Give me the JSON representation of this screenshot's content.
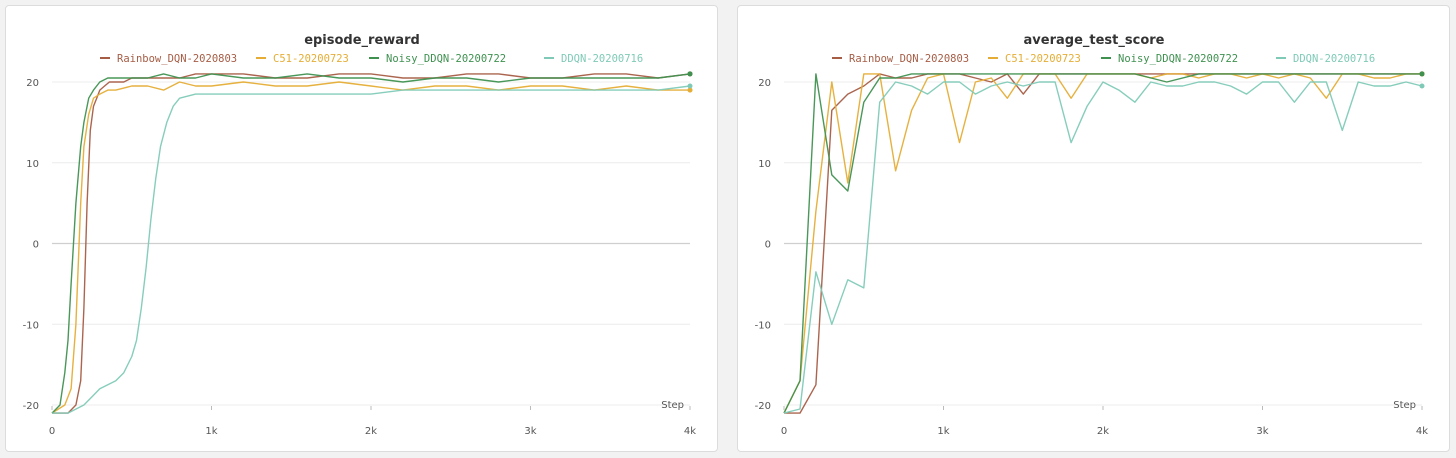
{
  "colors": {
    "rainbow": "#a65d45",
    "c51": "#e5ad35",
    "noisy": "#3f9150",
    "ddqn": "#7fcab7",
    "grid": "#ececec",
    "zero_line": "#cfcfcf"
  },
  "chart_data": [
    {
      "type": "line",
      "title": "episode_reward",
      "xlabel": "Step",
      "ylabel": "",
      "xlim": [
        0,
        4000
      ],
      "ylim": [
        -21,
        21
      ],
      "x_ticks": [
        0,
        1000,
        2000,
        3000,
        4000
      ],
      "x_tick_labels": [
        "0",
        "1k",
        "2k",
        "3k",
        "4k"
      ],
      "y_ticks": [
        20,
        10,
        0,
        -10,
        -20
      ],
      "y_tick_labels": [
        "20",
        "10",
        "0",
        "-10",
        "-20"
      ],
      "legend_position": "top",
      "series": [
        {
          "name": "Rainbow_DQN-2020803",
          "color_key": "rainbow",
          "x": [
            0,
            100,
            150,
            180,
            200,
            220,
            240,
            260,
            280,
            300,
            330,
            360,
            400,
            450,
            500,
            600,
            700,
            800,
            900,
            1000,
            1200,
            1400,
            1600,
            1800,
            2000,
            2200,
            2400,
            2600,
            2800,
            3000,
            3200,
            3400,
            3600,
            3800,
            4000
          ],
          "y": [
            -21,
            -21,
            -20,
            -17,
            -8,
            5,
            14,
            17,
            18,
            19,
            19.5,
            20,
            20,
            20,
            20.5,
            20.5,
            20.5,
            20.5,
            21,
            21,
            21,
            20.5,
            20.5,
            21,
            21,
            20.5,
            20.5,
            21,
            21,
            20.5,
            20.5,
            21,
            21,
            20.5,
            21
          ]
        },
        {
          "name": "C51-20200723",
          "color_key": "c51",
          "x": [
            0,
            80,
            120,
            150,
            180,
            200,
            230,
            260,
            300,
            350,
            400,
            500,
            600,
            700,
            800,
            900,
            1000,
            1200,
            1400,
            1600,
            1800,
            2000,
            2200,
            2400,
            2600,
            2800,
            3000,
            3200,
            3400,
            3600,
            3800,
            4000
          ],
          "y": [
            -21,
            -20,
            -18,
            -10,
            5,
            12,
            16,
            18,
            18.5,
            19,
            19,
            19.5,
            19.5,
            19,
            20,
            19.5,
            19.5,
            20,
            19.5,
            19.5,
            20,
            19.5,
            19,
            19.5,
            19.5,
            19,
            19.5,
            19.5,
            19,
            19.5,
            19,
            19
          ]
        },
        {
          "name": "Noisy_DDQN-20200722",
          "color_key": "noisy",
          "x": [
            0,
            50,
            80,
            100,
            120,
            150,
            180,
            200,
            230,
            260,
            300,
            350,
            400,
            500,
            600,
            700,
            800,
            900,
            1000,
            1200,
            1400,
            1600,
            1800,
            2000,
            2200,
            2400,
            2600,
            2800,
            3000,
            3200,
            3400,
            3600,
            3800,
            4000
          ],
          "y": [
            -21,
            -20,
            -16,
            -12,
            -5,
            5,
            12,
            15,
            18,
            19,
            20,
            20.5,
            20.5,
            20.5,
            20.5,
            21,
            20.5,
            20.5,
            21,
            20.5,
            20.5,
            21,
            20.5,
            20.5,
            20,
            20.5,
            20.5,
            20,
            20.5,
            20.5,
            20.5,
            20.5,
            20.5,
            21
          ]
        },
        {
          "name": "DDQN-20200716",
          "color_key": "ddqn",
          "x": [
            0,
            100,
            200,
            250,
            300,
            350,
            400,
            450,
            500,
            530,
            560,
            590,
            620,
            650,
            680,
            720,
            760,
            800,
            900,
            1000,
            1200,
            1400,
            1600,
            1800,
            2000,
            2200,
            2400,
            2600,
            2800,
            3000,
            3200,
            3400,
            3600,
            3800,
            4000
          ],
          "y": [
            -21,
            -21,
            -20,
            -19,
            -18,
            -17.5,
            -17,
            -16,
            -14,
            -12,
            -8,
            -3,
            3,
            8,
            12,
            15,
            17,
            18,
            18.5,
            18.5,
            18.5,
            18.5,
            18.5,
            18.5,
            18.5,
            19,
            19,
            19,
            19,
            19,
            19,
            19,
            19,
            19,
            19.5
          ]
        }
      ]
    },
    {
      "type": "line",
      "title": "average_test_score",
      "xlabel": "Step",
      "ylabel": "",
      "xlim": [
        0,
        4000
      ],
      "ylim": [
        -21,
        21
      ],
      "x_ticks": [
        0,
        1000,
        2000,
        3000,
        4000
      ],
      "x_tick_labels": [
        "0",
        "1k",
        "2k",
        "3k",
        "4k"
      ],
      "y_ticks": [
        20,
        10,
        0,
        -10,
        -20
      ],
      "y_tick_labels": [
        "20",
        "10",
        "0",
        "-10",
        "-20"
      ],
      "legend_position": "top",
      "series": [
        {
          "name": "Rainbow_DQN-2020803",
          "color_key": "rainbow",
          "x": [
            0,
            100,
            200,
            300,
            400,
            500,
            600,
            700,
            800,
            900,
            1000,
            1100,
            1200,
            1300,
            1400,
            1500,
            1600,
            1700,
            1800,
            1900,
            2000,
            2200,
            2400,
            2600,
            2800,
            3000,
            3200,
            3400,
            3600,
            3800,
            4000
          ],
          "y": [
            -21,
            -21,
            -17.5,
            16.5,
            18.5,
            19.5,
            21,
            20.5,
            20.5,
            21,
            21,
            21,
            20.5,
            20,
            21,
            18.5,
            21,
            21,
            21,
            21,
            21,
            21,
            21,
            21,
            21,
            21,
            21,
            21,
            21,
            21,
            21
          ]
        },
        {
          "name": "C51-20200723",
          "color_key": "c51",
          "x": [
            0,
            100,
            200,
            300,
            400,
            500,
            600,
            700,
            800,
            900,
            1000,
            1100,
            1200,
            1300,
            1400,
            1500,
            1600,
            1700,
            1800,
            1900,
            2000,
            2100,
            2200,
            2300,
            2400,
            2500,
            2600,
            2700,
            2800,
            2900,
            3000,
            3100,
            3200,
            3300,
            3400,
            3500,
            3600,
            3700,
            3800,
            3900,
            4000
          ],
          "y": [
            -21,
            -17,
            4,
            20,
            7.5,
            21,
            21,
            9,
            16.5,
            20.5,
            21,
            12.5,
            20,
            20.5,
            18,
            21,
            21,
            21,
            18,
            21,
            21,
            21,
            21,
            20.5,
            21,
            21,
            20.5,
            21,
            21,
            20.5,
            21,
            20.5,
            21,
            20.5,
            18,
            21,
            21,
            20.5,
            20.5,
            21,
            21
          ]
        },
        {
          "name": "Noisy_DDQN-20200722",
          "color_key": "noisy",
          "x": [
            0,
            100,
            200,
            300,
            400,
            500,
            600,
            700,
            800,
            900,
            1000,
            1200,
            1400,
            1600,
            1800,
            2000,
            2200,
            2400,
            2600,
            2800,
            3000,
            3200,
            3400,
            3600,
            3800,
            4000
          ],
          "y": [
            -21,
            -17,
            21,
            8.5,
            6.5,
            17.5,
            20.5,
            20.5,
            21,
            21,
            21,
            21,
            21,
            21,
            21,
            21,
            21,
            20,
            21,
            21,
            21,
            21,
            21,
            21,
            21,
            21
          ]
        },
        {
          "name": "DDQN-20200716",
          "color_key": "ddqn",
          "x": [
            0,
            100,
            200,
            300,
            400,
            500,
            600,
            700,
            800,
            900,
            1000,
            1100,
            1200,
            1300,
            1400,
            1500,
            1600,
            1700,
            1800,
            1900,
            2000,
            2100,
            2200,
            2300,
            2400,
            2500,
            2600,
            2700,
            2800,
            2900,
            3000,
            3100,
            3200,
            3300,
            3400,
            3500,
            3600,
            3700,
            3800,
            3900,
            4000
          ],
          "y": [
            -21,
            -20.5,
            -3.5,
            -10,
            -4.5,
            -5.5,
            17.5,
            20,
            19.5,
            18.5,
            20,
            20,
            18.5,
            19.5,
            20,
            19.5,
            20,
            20,
            12.5,
            17,
            20,
            19,
            17.5,
            20,
            19.5,
            19.5,
            20,
            20,
            19.5,
            18.5,
            20,
            20,
            17.5,
            20,
            20,
            14,
            20,
            19.5,
            19.5,
            20,
            19.5
          ]
        }
      ]
    }
  ]
}
